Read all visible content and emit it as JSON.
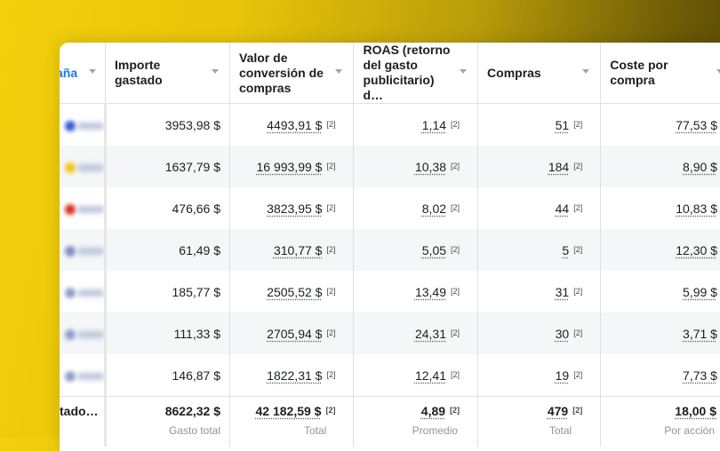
{
  "columns": [
    {
      "key": "campaign",
      "label": "aña"
    },
    {
      "key": "amount_spent",
      "label": "Importe gastado"
    },
    {
      "key": "conversion_value",
      "label": "Valor de conversión de compras"
    },
    {
      "key": "roas",
      "label": "ROAS (retorno del gasto publicitario) d…"
    },
    {
      "key": "purchases",
      "label": "Compras"
    },
    {
      "key": "cost_per_purchase",
      "label": "Coste por compra"
    }
  ],
  "footnote": "[2]",
  "rows": [
    {
      "amount_spent": "3953,98 $",
      "conversion_value": "4493,91 $",
      "roas": "1,14",
      "purchases": "51",
      "cost_per_purchase": "77,53 $",
      "dot_color": "#3b5bd6"
    },
    {
      "amount_spent": "1637,79 $",
      "conversion_value": "16 993,99 $",
      "roas": "10,38",
      "purchases": "184",
      "cost_per_purchase": "8,90 $",
      "dot_color": "#f5c518"
    },
    {
      "amount_spent": "476,66 $",
      "conversion_value": "3823,95 $",
      "roas": "8,02",
      "purchases": "44",
      "cost_per_purchase": "10,83 $",
      "dot_color": "#d93025"
    },
    {
      "amount_spent": "61,49 $",
      "conversion_value": "310,77 $",
      "roas": "5,05",
      "purchases": "5",
      "cost_per_purchase": "12,30 $",
      "dot_color": "#7b8fc6"
    },
    {
      "amount_spent": "185,77 $",
      "conversion_value": "2505,52 $",
      "roas": "13,49",
      "purchases": "31",
      "cost_per_purchase": "5,99 $",
      "dot_color": "#8da0cc"
    },
    {
      "amount_spent": "111,33 $",
      "conversion_value": "2705,94 $",
      "roas": "24,31",
      "purchases": "30",
      "cost_per_purchase": "3,71 $",
      "dot_color": "#8da0cc"
    },
    {
      "amount_spent": "146,87 $",
      "conversion_value": "1822,31 $",
      "roas": "12,41",
      "purchases": "19",
      "cost_per_purchase": "7,73 $",
      "dot_color": "#8da0cc"
    }
  ],
  "totals": {
    "label": "tado…",
    "amount_spent": {
      "value": "8622,32 $",
      "caption": "Gasto total"
    },
    "conversion_value": {
      "value": "42 182,59 $",
      "caption": "Total"
    },
    "roas": {
      "value": "4,89",
      "caption": "Promedio"
    },
    "purchases": {
      "value": "479",
      "caption": "Total"
    },
    "cost_per_purchase": {
      "value": "18,00 $",
      "caption": "Por acción"
    }
  },
  "colors": {
    "accent": "#1877f2",
    "background_gradient_start": "#f2cf0c",
    "background_gradient_end": "#4f4204"
  }
}
